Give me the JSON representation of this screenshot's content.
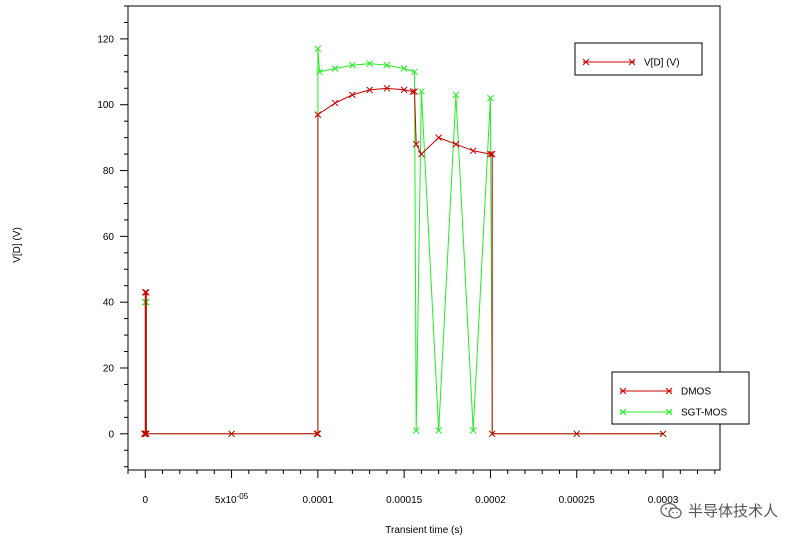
{
  "chart_data": {
    "type": "line",
    "title": "",
    "xlabel": "Transient time (s)",
    "ylabel": "V[D] (V)",
    "xlim": [
      -1e-05,
      0.000333
    ],
    "ylim": [
      -11,
      130
    ],
    "x_ticks": [
      0,
      5e-05,
      0.0001,
      0.00015,
      0.0002,
      0.00025,
      0.0003
    ],
    "x_tick_labels": [
      "0",
      "5x10",
      "0.0001",
      "0.00015",
      "0.0002",
      "0.00025",
      "0.0003"
    ],
    "x_tick_superscript": {
      "index": 1,
      "text": "-05"
    },
    "y_ticks": [
      0,
      20,
      40,
      60,
      80,
      100,
      120
    ],
    "y_tick_labels": [
      "0",
      "20",
      "40",
      "60",
      "80",
      "100",
      "120"
    ],
    "grid": false,
    "legends": [
      {
        "position": "top-right",
        "entries": [
          {
            "label": "V[D] (V)",
            "color": "#cc0000"
          }
        ]
      },
      {
        "position": "bottom-right",
        "entries": [
          {
            "label": "DMOS",
            "color": "#cc0000"
          },
          {
            "label": "SGT-MOS",
            "color": "#22ee22"
          }
        ]
      }
    ],
    "series": [
      {
        "name": "DMOS",
        "color": "#cc0000",
        "points": [
          [
            -5e-07,
            0
          ],
          [
            0,
            0
          ],
          [
            0,
            43
          ],
          [
            6e-07,
            43
          ],
          [
            6e-07,
            0
          ],
          [
            5e-05,
            0
          ],
          [
            9.95e-05,
            0
          ],
          [
            0.0001,
            0
          ],
          [
            0.0001,
            97
          ],
          [
            0.00011,
            100.5
          ],
          [
            0.00012,
            103
          ],
          [
            0.00013,
            104.5
          ],
          [
            0.00014,
            105
          ],
          [
            0.00015,
            104.5
          ],
          [
            0.000155,
            104
          ],
          [
            0.000156,
            104
          ],
          [
            0.000157,
            88
          ],
          [
            0.00016,
            85
          ],
          [
            0.00017,
            90
          ],
          [
            0.00018,
            88
          ],
          [
            0.00019,
            86
          ],
          [
            0.0002,
            85
          ],
          [
            0.000201,
            85
          ],
          [
            0.000201,
            0
          ],
          [
            0.00025,
            0
          ],
          [
            0.0003,
            0
          ]
        ]
      },
      {
        "name": "SGT-MOS",
        "color": "#22ee22",
        "points": [
          [
            -5e-07,
            0
          ],
          [
            0,
            0
          ],
          [
            0,
            40
          ],
          [
            6e-07,
            40
          ],
          [
            6e-07,
            0
          ],
          [
            5e-05,
            0
          ],
          [
            9.95e-05,
            0
          ],
          [
            0.0001,
            0
          ],
          [
            0.0001,
            117
          ],
          [
            0.000101,
            110
          ],
          [
            0.00011,
            111
          ],
          [
            0.00012,
            112
          ],
          [
            0.00013,
            112.5
          ],
          [
            0.00014,
            112
          ],
          [
            0.00015,
            111
          ],
          [
            0.000156,
            110
          ],
          [
            0.000157,
            1
          ],
          [
            0.00016,
            104
          ],
          [
            0.00017,
            1
          ],
          [
            0.00018,
            103
          ],
          [
            0.00019,
            1
          ],
          [
            0.0002,
            102
          ],
          [
            0.000201,
            0
          ],
          [
            0.00025,
            0
          ],
          [
            0.0003,
            0
          ]
        ]
      }
    ]
  },
  "watermark": {
    "text": "半导体技术人"
  }
}
